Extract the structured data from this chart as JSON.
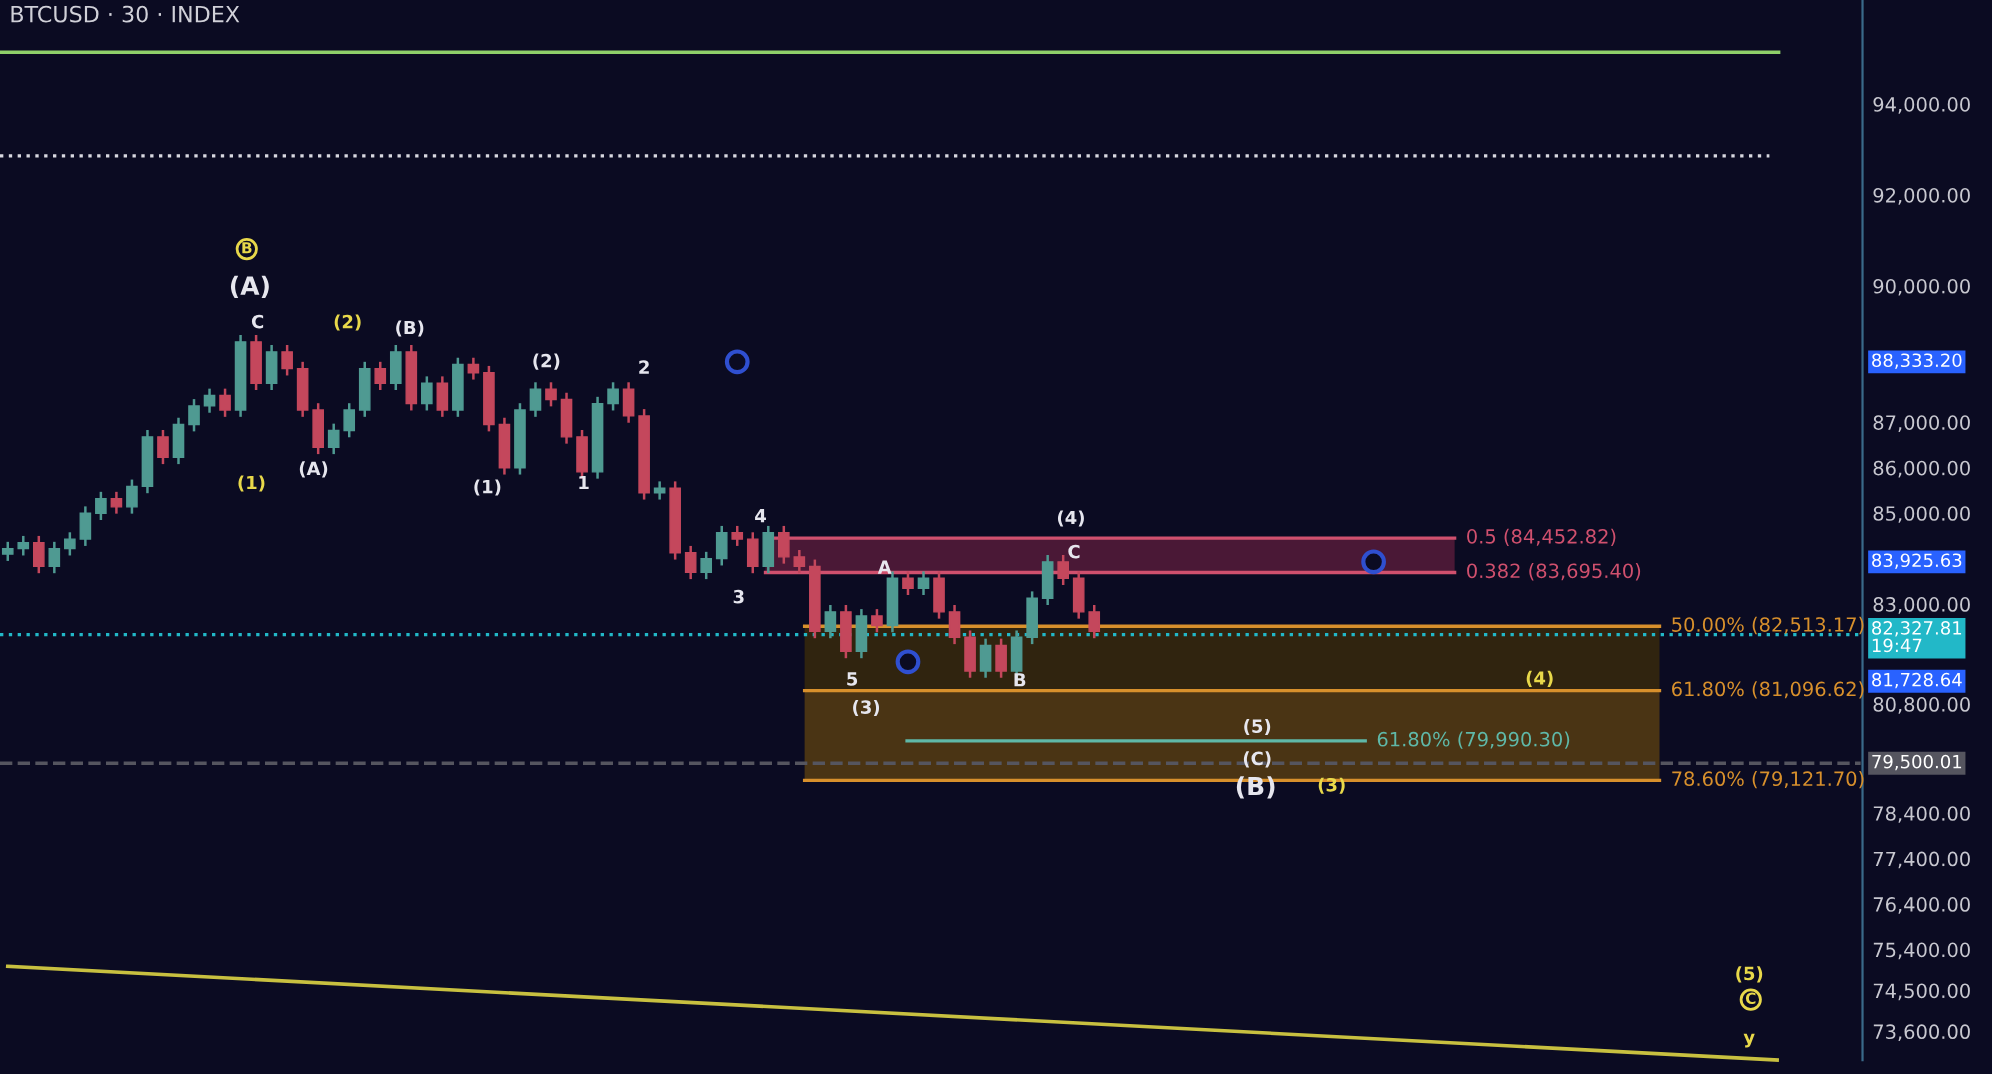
{
  "chart_data": {
    "type": "candlestick",
    "title": "BTCUSD · 30 · INDEX",
    "categories": [
      null,
      null,
      null,
      null,
      null,
      null,
      null,
      null,
      null,
      null,
      null,
      null,
      null,
      null,
      null,
      null,
      null,
      null,
      null,
      null,
      null,
      null,
      null,
      null,
      null,
      null,
      null,
      null,
      null,
      null,
      null,
      null,
      null,
      null,
      null,
      null,
      null,
      null,
      null,
      null,
      null,
      null,
      null,
      null,
      null,
      null,
      null,
      null,
      null,
      null,
      null,
      null,
      null,
      null,
      null,
      null,
      null,
      null,
      null,
      null,
      null,
      null,
      null,
      null,
      null,
      null,
      null,
      null,
      null,
      null,
      null,
      null,
      null,
      null,
      null,
      null,
      null,
      null,
      null,
      null,
      null,
      null,
      null,
      null,
      null,
      null,
      null,
      null,
      null,
      null,
      null,
      null,
      null,
      null,
      null,
      null,
      null,
      null,
      null,
      null,
      null,
      null,
      null,
      null,
      null,
      null,
      null,
      null,
      null,
      null,
      null,
      null,
      null,
      null,
      null,
      null,
      null,
      null,
      null,
      null
    ],
    "ohlc": [
      [
        84100,
        84370,
        83950,
        84220
      ],
      [
        84220,
        84500,
        84070,
        84350
      ],
      [
        84350,
        84500,
        83680,
        83830
      ],
      [
        83830,
        84370,
        83680,
        84220
      ],
      [
        84220,
        84580,
        84070,
        84430
      ],
      [
        84430,
        85150,
        84280,
        85000
      ],
      [
        85000,
        85470,
        84850,
        85320
      ],
      [
        85320,
        85470,
        84990,
        85140
      ],
      [
        85140,
        85740,
        84990,
        85590
      ],
      [
        85590,
        86830,
        85440,
        86680
      ],
      [
        86680,
        86830,
        86080,
        86230
      ],
      [
        86230,
        87100,
        86080,
        86950
      ],
      [
        86950,
        87510,
        86800,
        87360
      ],
      [
        87360,
        87740,
        87210,
        87590
      ],
      [
        87590,
        87740,
        87120,
        87270
      ],
      [
        87270,
        88920,
        87120,
        88770
      ],
      [
        88770,
        88920,
        87710,
        87860
      ],
      [
        87860,
        88700,
        87710,
        88550
      ],
      [
        88550,
        88700,
        88030,
        88180
      ],
      [
        88180,
        88330,
        87120,
        87270
      ],
      [
        87270,
        87420,
        86300,
        86450
      ],
      [
        86450,
        86970,
        86300,
        86820
      ],
      [
        86820,
        87420,
        86670,
        87270
      ],
      [
        87270,
        88330,
        87120,
        88180
      ],
      [
        88180,
        88330,
        87710,
        87860
      ],
      [
        87860,
        88700,
        87710,
        88550
      ],
      [
        88550,
        88700,
        87260,
        87410
      ],
      [
        87410,
        88010,
        87260,
        87860
      ],
      [
        87860,
        88010,
        87120,
        87270
      ],
      [
        87270,
        88420,
        87120,
        88270
      ],
      [
        88270,
        88420,
        87940,
        88090
      ],
      [
        88090,
        88240,
        86800,
        86950
      ],
      [
        86950,
        87100,
        85850,
        86000
      ],
      [
        86000,
        87420,
        85850,
        87270
      ],
      [
        87270,
        87880,
        87120,
        87730
      ],
      [
        87730,
        87880,
        87350,
        87500
      ],
      [
        87500,
        87650,
        86530,
        86680
      ],
      [
        86680,
        86830,
        85760,
        85910
      ],
      [
        85910,
        87560,
        85760,
        87410
      ],
      [
        87410,
        87880,
        87260,
        87730
      ],
      [
        87730,
        87880,
        86990,
        87140
      ],
      [
        87140,
        87290,
        85300,
        85450
      ],
      [
        85450,
        85700,
        85300,
        85550
      ],
      [
        85550,
        85700,
        83980,
        84130
      ],
      [
        84130,
        84280,
        83550,
        83700
      ],
      [
        83700,
        84150,
        83550,
        84000
      ],
      [
        84000,
        84720,
        83850,
        84570
      ],
      [
        84570,
        84720,
        84280,
        84430
      ],
      [
        84430,
        84580,
        83680,
        83830
      ],
      [
        83830,
        84720,
        83680,
        84570
      ],
      [
        84570,
        84720,
        83890,
        84040
      ],
      [
        84040,
        84190,
        83680,
        83830
      ],
      [
        83830,
        83980,
        82250,
        82400
      ],
      [
        82400,
        82980,
        82250,
        82830
      ],
      [
        82830,
        82980,
        81810,
        81960
      ],
      [
        81960,
        82890,
        81810,
        82740
      ],
      [
        82740,
        82890,
        82380,
        82530
      ],
      [
        82530,
        83720,
        82380,
        83570
      ],
      [
        83570,
        83720,
        83200,
        83350
      ],
      [
        83350,
        83720,
        83200,
        83570
      ],
      [
        83570,
        83720,
        82680,
        82830
      ],
      [
        82830,
        82980,
        82120,
        82270
      ],
      [
        82270,
        82420,
        81380,
        81530
      ],
      [
        81530,
        82240,
        81380,
        82090
      ],
      [
        82090,
        82240,
        81380,
        81530
      ],
      [
        81530,
        82420,
        81380,
        82270
      ],
      [
        82270,
        83280,
        82120,
        83130
      ],
      [
        83130,
        84080,
        82980,
        83930
      ],
      [
        83930,
        84080,
        83420,
        83570
      ],
      [
        83570,
        83720,
        82680,
        82830
      ],
      [
        82830,
        82980,
        82250,
        82400
      ],
      null,
      null,
      null,
      null,
      null,
      null,
      null,
      null,
      null,
      null,
      null,
      null,
      null,
      null,
      null,
      null,
      null,
      null,
      null,
      null,
      null,
      null,
      null,
      null,
      null,
      null,
      null,
      null,
      null,
      null,
      null,
      null,
      null,
      null,
      null,
      null,
      null,
      null,
      null,
      null,
      null,
      null,
      null,
      null,
      null,
      null,
      null,
      null,
      null
    ],
    "series": [
      {
        "type": "line",
        "color": "#c8c040",
        "values": [
          75030,
          null,
          null,
          null,
          null,
          null,
          null,
          null,
          null,
          null,
          null,
          null,
          null,
          null,
          null,
          null,
          null,
          null,
          null,
          null,
          null,
          null,
          null,
          null,
          null,
          null,
          null,
          null,
          null,
          null,
          null,
          null,
          null,
          null,
          null,
          null,
          null,
          null,
          null,
          null,
          null,
          null,
          null,
          null,
          null,
          null,
          null,
          null,
          null,
          null,
          null,
          null,
          null,
          null,
          null,
          null,
          null,
          null,
          null,
          null,
          null,
          null,
          null,
          null,
          null,
          null,
          null,
          null,
          null,
          null,
          null,
          null,
          null,
          null,
          null,
          null,
          null,
          null,
          null,
          null,
          null,
          null,
          null,
          null,
          null,
          null,
          null,
          null,
          null,
          null,
          null,
          null,
          null,
          null,
          null,
          null,
          null,
          null,
          null,
          null,
          null,
          null,
          null,
          null,
          null,
          null,
          null,
          null,
          null,
          null,
          null,
          null,
          null,
          null,
          72970,
          null,
          null,
          null,
          null,
          null
        ]
      },
      {
        "type": "scatter",
        "color": "#2f4fd0",
        "marker": "circle",
        "values": [
          null,
          null,
          null,
          null,
          null,
          null,
          null,
          null,
          null,
          null,
          null,
          null,
          null,
          null,
          null,
          null,
          null,
          null,
          null,
          null,
          null,
          null,
          null,
          null,
          null,
          null,
          null,
          null,
          null,
          null,
          null,
          null,
          null,
          null,
          null,
          null,
          null,
          null,
          null,
          null,
          null,
          null,
          null,
          null,
          null,
          null,
          null,
          88330,
          null,
          null,
          null,
          null,
          null,
          null,
          null,
          null,
          null,
          null,
          81730,
          null,
          null,
          null,
          null,
          null,
          null,
          null,
          null,
          null,
          null,
          null,
          null,
          null,
          null,
          null,
          null,
          null,
          null,
          null,
          null,
          null,
          null,
          null,
          null,
          null,
          null,
          null,
          null,
          null,
          83930,
          null,
          null,
          null,
          null,
          null,
          null,
          null,
          null,
          null,
          null,
          null,
          null,
          null,
          null,
          null,
          null,
          null,
          null,
          null,
          null,
          null,
          null,
          null,
          null,
          null,
          null,
          null,
          null,
          null,
          null,
          null
        ]
      }
    ],
    "ylim": [
      72970,
      96290
    ],
    "yticks": [
      {
        "value": 94000,
        "label": "94,000.00"
      },
      {
        "value": 92000,
        "label": "92,000.00"
      },
      {
        "value": 90000,
        "label": "90,000.00"
      },
      {
        "value": 87000,
        "label": "87,000.00"
      },
      {
        "value": 86000,
        "label": "86,000.00"
      },
      {
        "value": 85000,
        "label": "85,000.00"
      },
      {
        "value": 83000,
        "label": "83,000.00"
      },
      {
        "value": 80800,
        "label": "80,800.00"
      },
      {
        "value": 78400,
        "label": "78,400.00"
      },
      {
        "value": 77400,
        "label": "77,400.00"
      },
      {
        "value": 76400,
        "label": "76,400.00"
      },
      {
        "value": 75400,
        "label": "75,400.00"
      },
      {
        "value": 74500,
        "label": "74,500.00"
      },
      {
        "value": 73600,
        "label": "73,600.00"
      }
    ],
    "tick_labels": "y",
    "grid": false,
    "ref_lines": [
      {
        "axis": "y",
        "value": 95140,
        "color": "#8fd06a",
        "line_style": "solid"
      },
      {
        "axis": "y",
        "value": 92860,
        "color": "#d8d8e0",
        "line_style": "dotted"
      },
      {
        "axis": "y",
        "value": 84452.82,
        "label": "0.5 (84,452.82)",
        "color": "#d0506e",
        "line_style": "solid"
      },
      {
        "axis": "y",
        "value": 83695.4,
        "label": "0.382 (83,695.40)",
        "color": "#d0506e",
        "line_style": "solid"
      },
      {
        "axis": "y",
        "value": 82513.17,
        "label": "50.00% (82,513.17)",
        "color": "#d8902c",
        "line_style": "solid"
      },
      {
        "axis": "y",
        "value": 81096.62,
        "label": "61.80% (81,096.62)",
        "color": "#d8902c",
        "line_style": "solid"
      },
      {
        "axis": "y",
        "value": 79121.7,
        "label": "78.60% (79,121.70)",
        "color": "#d8902c",
        "line_style": "solid"
      },
      {
        "axis": "y",
        "value": 79990.3,
        "label": "61.80% (79,990.30)",
        "color": "#5fb8a8",
        "line_style": "solid"
      },
      {
        "axis": "y",
        "value": 82327.81,
        "label": "82,327.81\n19:47",
        "color": "#22b8c8",
        "line_style": "dotted"
      },
      {
        "axis": "y",
        "value": 79500.01,
        "label": "79,500.01",
        "color": "#55555f",
        "line_style": "dashed"
      }
    ],
    "bands": [
      {
        "axis": "y",
        "from": 83695.4,
        "to": 84452.82,
        "color": "#4a1836"
      },
      {
        "axis": "y",
        "from": 81096.62,
        "to": 82513.17,
        "color": "#30240f"
      },
      {
        "axis": "y",
        "from": 79121.7,
        "to": 81096.62,
        "color": "#4a3414"
      }
    ],
    "annotations": [
      "B",
      "(A)",
      "C",
      "(2)",
      "(B)",
      "(1)",
      "(A)",
      "(1)",
      "(2)",
      "1",
      "2",
      "4",
      "3",
      "A",
      "5",
      "(3)",
      "B",
      "(4)",
      "C",
      "(4)",
      "(5)",
      "(C)",
      "(B)",
      "(3)",
      "(5)",
      "C",
      "y",
      "88,333.20",
      "81,728.64",
      "83,925.63"
    ]
  }
}
